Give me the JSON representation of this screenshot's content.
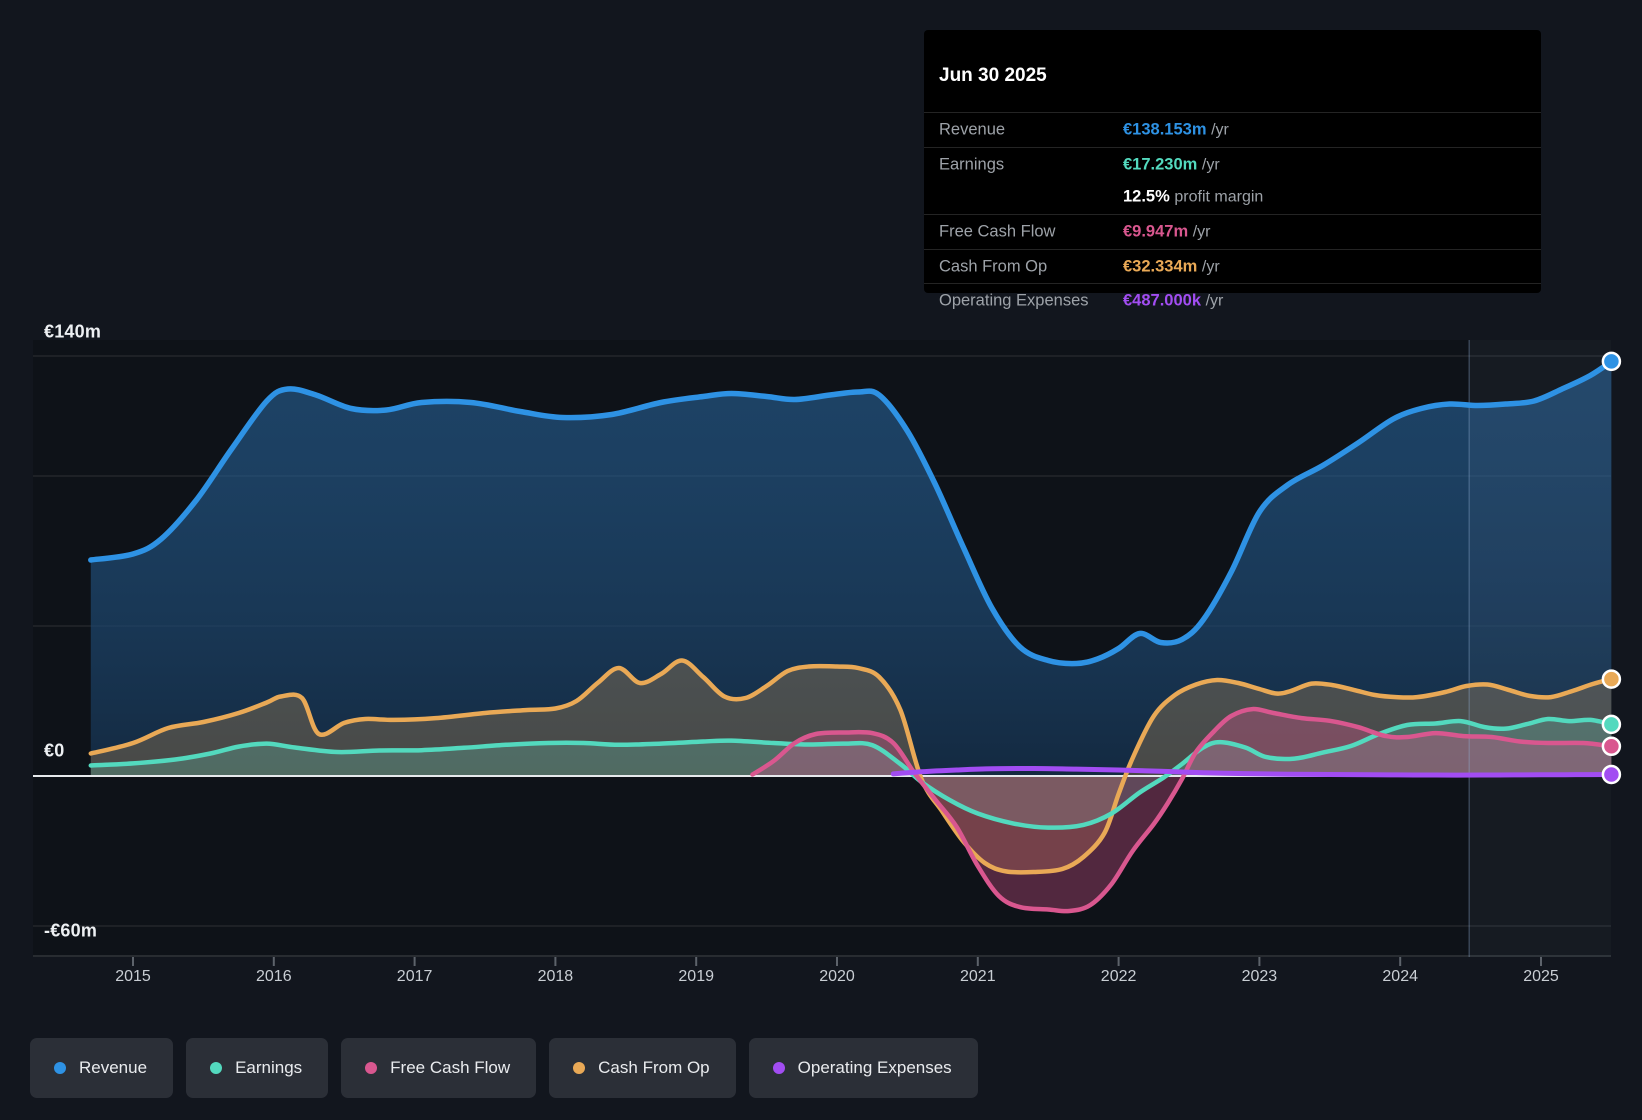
{
  "tooltip": {
    "date": "Jun 30 2025",
    "rows": [
      {
        "label": "Revenue",
        "value": "€138.153m",
        "unit": "/yr",
        "color_key": "revenue"
      },
      {
        "label": "Earnings",
        "value": "€17.230m",
        "unit": "/yr",
        "color_key": "earnings"
      },
      {
        "label": "",
        "value": "12.5%",
        "unit": "profit margin",
        "color_key": "plain"
      },
      {
        "label": "Free Cash Flow",
        "value": "€9.947m",
        "unit": "/yr",
        "color_key": "fcf"
      },
      {
        "label": "Cash From Op",
        "value": "€32.334m",
        "unit": "/yr",
        "color_key": "cashop"
      },
      {
        "label": "Operating Expenses",
        "value": "€487.000k",
        "unit": "/yr",
        "color_key": "opex"
      }
    ]
  },
  "legend": {
    "items": [
      {
        "label": "Revenue",
        "key": "revenue"
      },
      {
        "label": "Earnings",
        "key": "earnings"
      },
      {
        "label": "Free Cash Flow",
        "key": "fcf"
      },
      {
        "label": "Cash From Op",
        "key": "cashop"
      },
      {
        "label": "Operating Expenses",
        "key": "opex"
      }
    ]
  },
  "axes": {
    "y_labels": [
      {
        "text": "€140m",
        "value": 140
      },
      {
        "text": "€0",
        "value": 0
      },
      {
        "text": "-€60m",
        "value": -60
      }
    ],
    "x_labels": [
      "2015",
      "2016",
      "2017",
      "2018",
      "2019",
      "2020",
      "2021",
      "2022",
      "2023",
      "2024",
      "2025"
    ]
  },
  "colors": {
    "revenue": "#2E92E4",
    "earnings": "#53D9BE",
    "fcf": "#D9578F",
    "cashop": "#E9A956",
    "opex": "#A24DF2",
    "zero_line": "#E6E9EC",
    "gridline": "rgba(255,255,255,0.13)",
    "tick": "#5d636b",
    "band": "rgba(160,190,220,0.055)",
    "divider": "rgba(150,180,215,0.30)"
  },
  "chart_data": {
    "type": "area",
    "title": "Revenue & cash flow history (€ millions per year)",
    "x_range": [
      2014.7,
      2025.5
    ],
    "ylim": [
      -60,
      145
    ],
    "grid_values": [
      140,
      100,
      50,
      0,
      -50,
      -60
    ],
    "highlight_band": {
      "from_year": 2024.49,
      "to_year": 2025.5
    },
    "last_point_date": "Jun 30 2025",
    "series": [
      {
        "name": "Revenue",
        "key": "revenue",
        "unit": "€m/yr",
        "end_value": 138.153,
        "points": [
          [
            2014.7,
            72
          ],
          [
            2015,
            74
          ],
          [
            2015.2,
            79
          ],
          [
            2015.45,
            92
          ],
          [
            2015.7,
            109
          ],
          [
            2015.95,
            125
          ],
          [
            2016.1,
            129
          ],
          [
            2016.3,
            127
          ],
          [
            2016.55,
            122.5
          ],
          [
            2016.8,
            122
          ],
          [
            2017.05,
            124.5
          ],
          [
            2017.4,
            124.5
          ],
          [
            2017.75,
            121.5
          ],
          [
            2018.05,
            119.5
          ],
          [
            2018.4,
            120.5
          ],
          [
            2018.75,
            124.5
          ],
          [
            2019.05,
            126.5
          ],
          [
            2019.25,
            127.5
          ],
          [
            2019.5,
            126.5
          ],
          [
            2019.7,
            125.5
          ],
          [
            2019.95,
            127
          ],
          [
            2020.15,
            128
          ],
          [
            2020.3,
            127
          ],
          [
            2020.5,
            115
          ],
          [
            2020.7,
            97
          ],
          [
            2020.9,
            76
          ],
          [
            2021.1,
            56
          ],
          [
            2021.3,
            43
          ],
          [
            2021.5,
            38.5
          ],
          [
            2021.7,
            37.5
          ],
          [
            2021.85,
            39
          ],
          [
            2022,
            42.5
          ],
          [
            2022.15,
            47.5
          ],
          [
            2022.3,
            44.5
          ],
          [
            2022.45,
            45.5
          ],
          [
            2022.6,
            52
          ],
          [
            2022.8,
            68
          ],
          [
            2023,
            88
          ],
          [
            2023.2,
            97
          ],
          [
            2023.45,
            103.5
          ],
          [
            2023.7,
            111
          ],
          [
            2023.95,
            119
          ],
          [
            2024.15,
            122.5
          ],
          [
            2024.35,
            124
          ],
          [
            2024.55,
            123.5
          ],
          [
            2024.75,
            124
          ],
          [
            2024.95,
            125
          ],
          [
            2025.15,
            129
          ],
          [
            2025.35,
            133.5
          ],
          [
            2025.5,
            138.2
          ]
        ]
      },
      {
        "name": "Cash From Op",
        "key": "cashop",
        "unit": "€m/yr",
        "end_value": 32.334,
        "points": [
          [
            2014.7,
            7.5
          ],
          [
            2015,
            11
          ],
          [
            2015.25,
            16
          ],
          [
            2015.5,
            18
          ],
          [
            2015.75,
            21
          ],
          [
            2015.95,
            24.5
          ],
          [
            2016.05,
            26.5
          ],
          [
            2016.2,
            26
          ],
          [
            2016.32,
            14
          ],
          [
            2016.5,
            17.7
          ],
          [
            2016.65,
            19
          ],
          [
            2016.85,
            18.7
          ],
          [
            2017.15,
            19.3
          ],
          [
            2017.5,
            21
          ],
          [
            2017.8,
            22
          ],
          [
            2018,
            22.5
          ],
          [
            2018.15,
            25
          ],
          [
            2018.3,
            31
          ],
          [
            2018.45,
            36
          ],
          [
            2018.6,
            31
          ],
          [
            2018.75,
            34
          ],
          [
            2018.9,
            38.5
          ],
          [
            2019.05,
            33
          ],
          [
            2019.2,
            26.5
          ],
          [
            2019.35,
            26
          ],
          [
            2019.5,
            30
          ],
          [
            2019.65,
            35
          ],
          [
            2019.8,
            36.5
          ],
          [
            2020,
            36.5
          ],
          [
            2020.15,
            36
          ],
          [
            2020.3,
            33
          ],
          [
            2020.45,
            22
          ],
          [
            2020.6,
            -1
          ],
          [
            2020.75,
            -12
          ],
          [
            2020.9,
            -22
          ],
          [
            2021.05,
            -29
          ],
          [
            2021.2,
            -31.8
          ],
          [
            2021.4,
            -32
          ],
          [
            2021.6,
            -31
          ],
          [
            2021.75,
            -27
          ],
          [
            2021.9,
            -19
          ],
          [
            2022,
            -6
          ],
          [
            2022.1,
            6
          ],
          [
            2022.25,
            20
          ],
          [
            2022.4,
            27
          ],
          [
            2022.55,
            30.5
          ],
          [
            2022.7,
            32
          ],
          [
            2022.85,
            31
          ],
          [
            2023,
            29
          ],
          [
            2023.12,
            27.5
          ],
          [
            2023.22,
            28.3
          ],
          [
            2023.37,
            30.8
          ],
          [
            2023.52,
            30.3
          ],
          [
            2023.67,
            28.7
          ],
          [
            2023.82,
            27
          ],
          [
            2023.97,
            26.3
          ],
          [
            2024.12,
            26.3
          ],
          [
            2024.32,
            28
          ],
          [
            2024.47,
            30
          ],
          [
            2024.62,
            30.5
          ],
          [
            2024.77,
            28.7
          ],
          [
            2024.92,
            26.7
          ],
          [
            2025.07,
            26.3
          ],
          [
            2025.22,
            28.3
          ],
          [
            2025.37,
            30.7
          ],
          [
            2025.5,
            32.3
          ]
        ]
      },
      {
        "name": "Earnings",
        "key": "earnings",
        "unit": "€m/yr",
        "end_value": 17.23,
        "points": [
          [
            2014.7,
            3.5
          ],
          [
            2015,
            4.2
          ],
          [
            2015.3,
            5.5
          ],
          [
            2015.55,
            7.5
          ],
          [
            2015.75,
            9.8
          ],
          [
            2015.95,
            10.8
          ],
          [
            2016.15,
            9.5
          ],
          [
            2016.45,
            8
          ],
          [
            2016.75,
            8.5
          ],
          [
            2017.05,
            8.6
          ],
          [
            2017.35,
            9.4
          ],
          [
            2017.65,
            10.4
          ],
          [
            2017.95,
            11
          ],
          [
            2018.2,
            11
          ],
          [
            2018.45,
            10.4
          ],
          [
            2018.75,
            10.8
          ],
          [
            2019.05,
            11.5
          ],
          [
            2019.25,
            11.8
          ],
          [
            2019.55,
            11
          ],
          [
            2019.8,
            10.5
          ],
          [
            2020.05,
            10.8
          ],
          [
            2020.25,
            10.3
          ],
          [
            2020.45,
            4
          ],
          [
            2020.6,
            -2
          ],
          [
            2020.8,
            -8
          ],
          [
            2021,
            -12.5
          ],
          [
            2021.25,
            -15.8
          ],
          [
            2021.5,
            -17.2
          ],
          [
            2021.75,
            -16.3
          ],
          [
            2021.95,
            -12.5
          ],
          [
            2022.15,
            -5.5
          ],
          [
            2022.32,
            -0.5
          ],
          [
            2022.45,
            4
          ],
          [
            2022.6,
            9.5
          ],
          [
            2022.72,
            11.3
          ],
          [
            2022.9,
            9.5
          ],
          [
            2023.05,
            6.3
          ],
          [
            2023.25,
            5.8
          ],
          [
            2023.45,
            7.8
          ],
          [
            2023.65,
            10
          ],
          [
            2023.85,
            14
          ],
          [
            2024.05,
            17
          ],
          [
            2024.25,
            17.5
          ],
          [
            2024.43,
            18.3
          ],
          [
            2024.6,
            16.3
          ],
          [
            2024.75,
            15.8
          ],
          [
            2024.9,
            17.3
          ],
          [
            2025.05,
            19
          ],
          [
            2025.2,
            18.3
          ],
          [
            2025.35,
            18.7
          ],
          [
            2025.5,
            17.2
          ]
        ]
      },
      {
        "name": "Free Cash Flow",
        "key": "fcf",
        "unit": "€m/yr",
        "end_value": 9.947,
        "points": [
          [
            2019.4,
            0.5
          ],
          [
            2019.55,
            5
          ],
          [
            2019.7,
            11
          ],
          [
            2019.85,
            14
          ],
          [
            2020.05,
            14.5
          ],
          [
            2020.25,
            14.3
          ],
          [
            2020.4,
            11
          ],
          [
            2020.55,
            1
          ],
          [
            2020.7,
            -8
          ],
          [
            2020.85,
            -17
          ],
          [
            2021,
            -30
          ],
          [
            2021.15,
            -40
          ],
          [
            2021.3,
            -43.7
          ],
          [
            2021.5,
            -44.5
          ],
          [
            2021.65,
            -45
          ],
          [
            2021.8,
            -43
          ],
          [
            2021.95,
            -36
          ],
          [
            2022.1,
            -25
          ],
          [
            2022.25,
            -16
          ],
          [
            2022.35,
            -9
          ],
          [
            2022.45,
            -1
          ],
          [
            2022.55,
            8
          ],
          [
            2022.68,
            15
          ],
          [
            2022.8,
            20
          ],
          [
            2022.95,
            22.3
          ],
          [
            2023.1,
            21
          ],
          [
            2023.3,
            19.3
          ],
          [
            2023.5,
            18.4
          ],
          [
            2023.7,
            16.3
          ],
          [
            2023.9,
            13.3
          ],
          [
            2024.05,
            13
          ],
          [
            2024.25,
            14.3
          ],
          [
            2024.45,
            13.3
          ],
          [
            2024.65,
            13
          ],
          [
            2024.85,
            11.5
          ],
          [
            2025.05,
            11
          ],
          [
            2025.3,
            11
          ],
          [
            2025.5,
            9.9
          ]
        ]
      },
      {
        "name": "Operating Expenses",
        "key": "opex",
        "unit": "€m/yr",
        "end_value": 0.487,
        "points": [
          [
            2020.4,
            0.7
          ],
          [
            2020.6,
            1.4
          ],
          [
            2020.85,
            2
          ],
          [
            2021.1,
            2.4
          ],
          [
            2021.4,
            2.5
          ],
          [
            2021.7,
            2.3
          ],
          [
            2022,
            2
          ],
          [
            2022.3,
            1.6
          ],
          [
            2022.6,
            1.1
          ],
          [
            2022.9,
            0.8
          ],
          [
            2023.2,
            0.6
          ],
          [
            2023.5,
            0.5
          ],
          [
            2023.8,
            0.4
          ],
          [
            2024.1,
            0.35
          ],
          [
            2024.4,
            0.3
          ],
          [
            2024.7,
            0.35
          ],
          [
            2025,
            0.4
          ],
          [
            2025.25,
            0.45
          ],
          [
            2025.5,
            0.49
          ]
        ]
      }
    ]
  }
}
